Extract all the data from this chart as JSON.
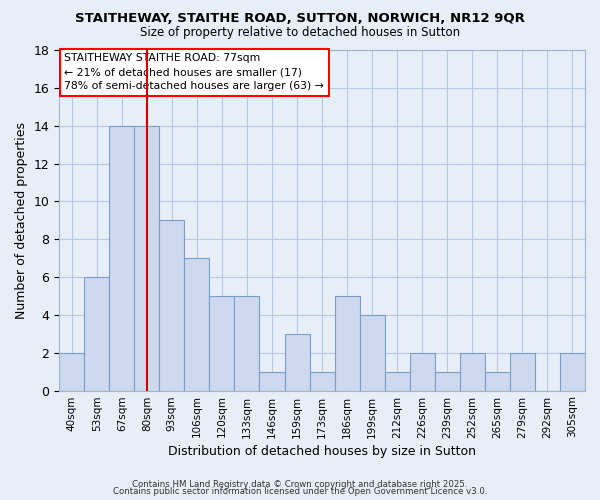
{
  "title": "STAITHEWAY, STAITHE ROAD, SUTTON, NORWICH, NR12 9QR",
  "subtitle": "Size of property relative to detached houses in Sutton",
  "xlabel": "Distribution of detached houses by size in Sutton",
  "ylabel": "Number of detached properties",
  "categories": [
    "40sqm",
    "53sqm",
    "67sqm",
    "80sqm",
    "93sqm",
    "106sqm",
    "120sqm",
    "133sqm",
    "146sqm",
    "159sqm",
    "173sqm",
    "186sqm",
    "199sqm",
    "212sqm",
    "226sqm",
    "239sqm",
    "252sqm",
    "265sqm",
    "279sqm",
    "292sqm",
    "305sqm"
  ],
  "values": [
    2,
    6,
    14,
    14,
    9,
    7,
    5,
    5,
    1,
    3,
    1,
    5,
    4,
    1,
    2,
    1,
    2,
    1,
    2,
    0,
    2
  ],
  "bar_color": "#ccd9ee",
  "bar_edge_color": "#7a9ec8",
  "grid_color": "#b8c8e0",
  "background_color": "#e8eef8",
  "vline_x_index": 3,
  "vline_color": "#cc0000",
  "annotation_box_text": "STAITHEWAY STAITHE ROAD: 77sqm\n← 21% of detached houses are smaller (17)\n78% of semi-detached houses are larger (63) →",
  "ylim": [
    0,
    18
  ],
  "yticks": [
    0,
    2,
    4,
    6,
    8,
    10,
    12,
    14,
    16,
    18
  ],
  "footer1": "Contains HM Land Registry data © Crown copyright and database right 2025.",
  "footer2": "Contains public sector information licensed under the Open Government Licence v3.0."
}
